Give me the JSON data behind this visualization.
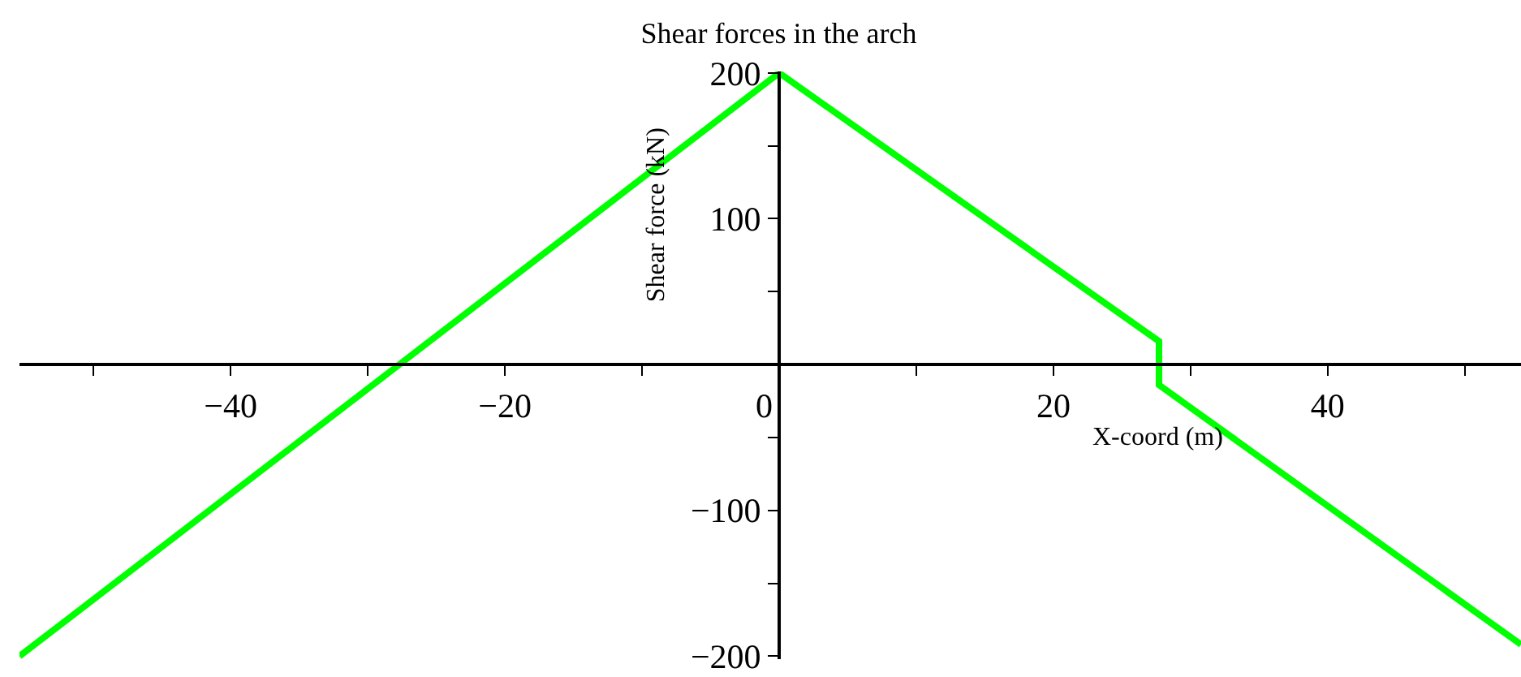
{
  "chart_data": {
    "type": "line",
    "title": "Shear forces in the arch",
    "xlabel": "X-coord (m)",
    "ylabel": "Shear force (kN)",
    "x": [
      -55.4,
      0,
      27.7,
      27.7,
      54.1
    ],
    "series": [
      {
        "color": "#00ff00",
        "values": [
          -200,
          200,
          16,
          -14,
          -192
        ]
      }
    ],
    "xlim": [
      -55.4,
      54.1
    ],
    "ylim": [
      -202,
      201
    ],
    "xticks": [
      {
        "value": -50,
        "label": null
      },
      {
        "value": -40,
        "label": "−40"
      },
      {
        "value": -30,
        "label": null
      },
      {
        "value": -20,
        "label": "−20"
      },
      {
        "value": -10,
        "label": null
      },
      0,
      {
        "value": 10,
        "label": null
      },
      20,
      {
        "value": 30,
        "label": null
      },
      40,
      {
        "value": 50,
        "label": null
      }
    ],
    "yticks": [
      {
        "value": -200,
        "label": "−200"
      },
      {
        "value": -150,
        "label": null
      },
      {
        "value": -100,
        "label": "−100"
      },
      {
        "value": -50,
        "label": null
      },
      {
        "value": 50,
        "label": null
      },
      100,
      {
        "value": 150,
        "label": null
      },
      200
    ],
    "grid": false
  }
}
